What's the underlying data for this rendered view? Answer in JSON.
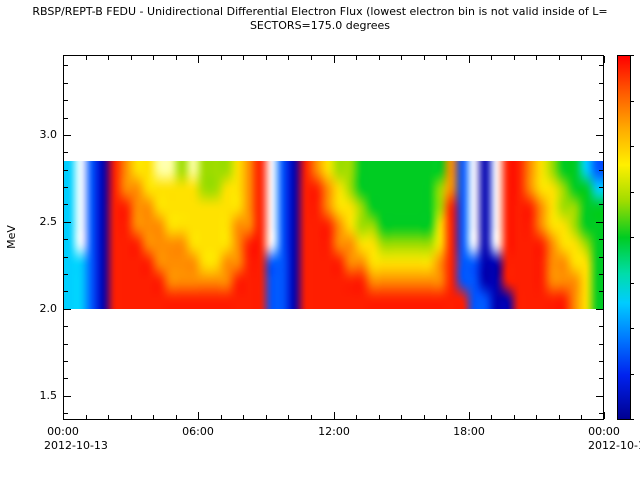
{
  "chart_data": {
    "type": "heatmap",
    "title": "RBSP/REPT-B  FEDU - Unidirectional Differential Electron Flux (lowest electron bin is not valid inside of L=",
    "subtitle": "SECTORS=175.0 degrees",
    "ylabel": "MeV",
    "ylim_mev": [
      1.36,
      3.46
    ],
    "yticks_mev": [
      1.5,
      2.0,
      2.5,
      3.0
    ],
    "ytick_labels": [
      "1.5",
      "2.0",
      "2.5",
      "3.0"
    ],
    "y_minor_step_mev": 0.1,
    "xlim_hours": [
      0,
      24
    ],
    "xticks_hours": [
      0,
      6,
      12,
      18,
      24
    ],
    "xtick_labels": [
      "00:00",
      "06:00",
      "12:00",
      "18:00",
      "00:00"
    ],
    "x_minor_step_hours": 1,
    "date_label_left": "2012-10-13",
    "date_label_right": "2012-10-1",
    "band_mev_range": [
      2.0,
      2.85
    ],
    "grid_cols": 48,
    "grid_rows": 8,
    "grid_hours_per_col": 0.5,
    "grid_note": "rows listed top (2.85 MeV) to bottom (2.0 MeV); one char per half-hour column; '.' = data gap (white)",
    "palette": {
      ".": "#ffffff",
      "k": "#0000b0",
      "b": "#0055ff",
      "c": "#00d0ff",
      "g": "#00cc22",
      "l": "#9fdd00",
      "y": "#ffe200",
      "p": "#ffffa0",
      "o": "#ff8d00",
      "r": "#ff1e00"
    },
    "grid": [
      "c.bkroyypplplllyor.bkroyllggggggggob.k.rroylggcb",
      "c.bkrooyyyyyllyyor.bkrroylggggggglob.k.rroyylggc",
      "c.bkrrooyyyyyyyyor.bkrroyylgggggglrb.k.rrroyllgg",
      "c.bkrroooyyyyyyoor.bkrrroyllgggggyrb.k.rrroyylgg",
      "c.bkrrrooooyyyyorr.bkrrrooyylllllyrb.k.rrrroyylg",
      "ccbkrrrrooooyyoorrbbkrrrrooyyyyyyorbbkkrrrrooyyg",
      "ccbkrrrrroooooorrrbbkrrrrrrooooooorbbkkrrrroooyg",
      "ccbkrrrrrrrrrrrrrrbbkrrrrrrrrrrrrrrrbbkkrrrrroyg"
    ],
    "colorbar": {
      "orientation": "vertical",
      "stops": [
        [
          0.0,
          "#ff0000"
        ],
        [
          0.1,
          "#ff5a00"
        ],
        [
          0.2,
          "#ffaa00"
        ],
        [
          0.3,
          "#fff000"
        ],
        [
          0.4,
          "#a0dc00"
        ],
        [
          0.5,
          "#00cc22"
        ],
        [
          0.6,
          "#00ddaa"
        ],
        [
          0.68,
          "#00ccff"
        ],
        [
          0.78,
          "#0077ff"
        ],
        [
          0.88,
          "#0022ee"
        ],
        [
          1.0,
          "#000090"
        ]
      ],
      "tick_count": 9
    }
  }
}
